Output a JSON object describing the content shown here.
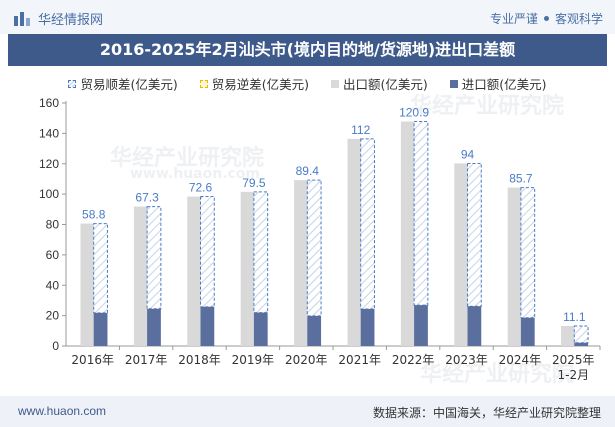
{
  "header": {
    "brand_name": "华经情报网",
    "tagline_left": "专业严谨",
    "tagline_right": "客观科学"
  },
  "title": "2016-2025年2月汕头市(境内目的地/货源地)进出口差额",
  "legend": {
    "shun": "贸易顺差(亿美元)",
    "ni": "贸易逆差(亿美元)",
    "exp": "出口额(亿美元)",
    "imp": "进口额(亿美元)"
  },
  "footer": {
    "url": "www.huaon.com",
    "source": "数据来源：中国海关，华经产业研究院整理"
  },
  "watermark": {
    "cn": "华经产业研究院",
    "en": "www.huaon.com"
  },
  "colors": {
    "export": "#d9d9d9",
    "import": "#5b6f9e",
    "surplus_line": "#4a7bc8",
    "label": "#4a7bc8",
    "title_bg": "#3d5a8a"
  },
  "chart_data": {
    "type": "bar",
    "categories": [
      "2016年",
      "2017年",
      "2018年",
      "2019年",
      "2020年",
      "2021年",
      "2022年",
      "2023年",
      "2024年",
      "2025年\n1-2月"
    ],
    "series": [
      {
        "name": "出口额(亿美元)",
        "values": [
          80.6,
          91.8,
          98.4,
          101.5,
          109.2,
          136.4,
          147.8,
          120.2,
          104.3,
          13.2
        ]
      },
      {
        "name": "进口额(亿美元)",
        "values": [
          21.8,
          24.5,
          25.8,
          22.0,
          19.8,
          24.4,
          26.9,
          26.2,
          18.6,
          2.1
        ]
      },
      {
        "name": "贸易顺差(亿美元)",
        "values": [
          58.8,
          67.3,
          72.6,
          79.5,
          89.4,
          112,
          120.9,
          94,
          85.7,
          11.1
        ]
      },
      {
        "name": "贸易逆差(亿美元)",
        "values": [
          0,
          0,
          0,
          0,
          0,
          0,
          0,
          0,
          0,
          0
        ]
      }
    ],
    "ylim": [
      0,
      160
    ],
    "yticks": [
      0,
      20,
      40,
      60,
      80,
      100,
      120,
      140,
      160
    ],
    "xlabel": "",
    "ylabel": "",
    "grid": false,
    "legend_position": "top"
  }
}
